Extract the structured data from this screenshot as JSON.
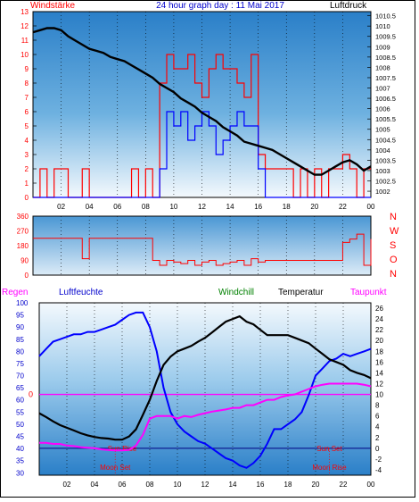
{
  "title": "24 hour graph day : 11 Mai 2017",
  "labels": {
    "windstaerke": "Windstärke",
    "luftdruck": "Luftdruck",
    "regen": "Regen",
    "luftfeuchte": "Luftfeuchte",
    "windchill": "Windchill",
    "temperatur": "Temperatur",
    "taupunkt": "Taupunkt",
    "sun_rise": "Sun Rise",
    "sun_set": "Sun Set",
    "moon_set": "Moon Set",
    "moon_rise": "Moon Rise",
    "zero_marker": "0"
  },
  "colors": {
    "wind": "#ff0000",
    "gust": "#0000ff",
    "pressure": "#000000",
    "humidity": "#0000ff",
    "temperature": "#000000",
    "dewpoint": "#ff00ff",
    "windchill": "#008000",
    "direction": "#ff0000",
    "grid": "#000000",
    "day_sky": "#3d8fd0",
    "night_sky": "#e8f2fa"
  },
  "chart_data": [
    {
      "type": "line",
      "name": "wind-pressure",
      "x_ticks": [
        "02",
        "04",
        "06",
        "08",
        "10",
        "12",
        "14",
        "16",
        "18",
        "20",
        "22",
        "00"
      ],
      "xlim": [
        0,
        24
      ],
      "left_axis": {
        "label": "Windstärke",
        "ticks": [
          0,
          1,
          2,
          3,
          4,
          5,
          6,
          7,
          8,
          9,
          10,
          11,
          12,
          13
        ],
        "ylim": [
          0,
          13
        ]
      },
      "right_axis": {
        "label": "Luftdruck",
        "ticks": [
          "1002",
          "1002.5",
          "1003",
          "1003.5",
          "1004",
          "1004.5",
          "1005",
          "1005.5",
          "1006",
          "1006.5",
          "1007",
          "1007.5",
          "1008",
          "1008.5",
          "1009",
          "1009.5",
          "1010",
          "1010.5"
        ],
        "ylim": [
          1001.7,
          1010.7
        ]
      },
      "series": [
        {
          "name": "Luftdruck",
          "axis": "right",
          "x": [
            0,
            0.5,
            1,
            1.5,
            2,
            2.5,
            3,
            3.5,
            4,
            4.5,
            5,
            5.5,
            6,
            6.5,
            7,
            7.5,
            8,
            8.5,
            9,
            9.5,
            10,
            10.5,
            11,
            11.5,
            12,
            12.5,
            13,
            13.5,
            14,
            14.5,
            15,
            15.5,
            16,
            16.5,
            17,
            17.5,
            18,
            18.5,
            19,
            19.5,
            20,
            20.5,
            21,
            21.5,
            22,
            22.5,
            23,
            23.5,
            24
          ],
          "values": [
            1009.7,
            1009.8,
            1009.9,
            1009.9,
            1009.8,
            1009.5,
            1009.3,
            1009.1,
            1008.9,
            1008.8,
            1008.7,
            1008.5,
            1008.4,
            1008.3,
            1008.1,
            1007.9,
            1007.7,
            1007.5,
            1007.2,
            1007.0,
            1006.8,
            1006.5,
            1006.3,
            1006.1,
            1005.8,
            1005.6,
            1005.4,
            1005.1,
            1004.9,
            1004.7,
            1004.4,
            1004.3,
            1004.2,
            1004.1,
            1004.0,
            1003.8,
            1003.6,
            1003.4,
            1003.2,
            1003.0,
            1002.8,
            1002.8,
            1003.0,
            1003.2,
            1003.4,
            1003.5,
            1003.3,
            1003.0,
            1003.2
          ]
        },
        {
          "name": "Windstärke",
          "axis": "left",
          "x": [
            0,
            0.5,
            1,
            1.5,
            2,
            2.5,
            3,
            3.5,
            4,
            4.5,
            5,
            5.5,
            6,
            6.5,
            7,
            7.5,
            8,
            8.5,
            9,
            9.5,
            10,
            10.5,
            11,
            11.5,
            12,
            12.5,
            13,
            13.5,
            14,
            14.5,
            15,
            15.5,
            16,
            16.5,
            17,
            17.5,
            18,
            18.5,
            19,
            19.5,
            20,
            20.5,
            21,
            21.5,
            22,
            22.5,
            23,
            23.5,
            24
          ],
          "values": [
            0,
            2,
            0,
            2,
            2,
            0,
            0,
            2,
            0,
            0,
            0,
            0,
            0,
            0,
            2,
            0,
            2,
            0,
            8,
            10,
            9,
            9,
            10,
            8,
            7,
            9,
            10,
            9,
            9,
            8,
            7,
            10,
            3,
            2,
            2,
            2,
            2,
            0,
            2,
            0,
            2,
            0,
            2,
            2,
            3,
            2,
            0,
            2,
            2
          ]
        },
        {
          "name": "Böen",
          "axis": "left",
          "x": [
            0,
            0.5,
            1,
            1.5,
            2,
            2.5,
            3,
            3.5,
            4,
            4.5,
            5,
            5.5,
            6,
            6.5,
            7,
            7.5,
            8,
            8.5,
            9,
            9.5,
            10,
            10.5,
            11,
            11.5,
            12,
            12.5,
            13,
            13.5,
            14,
            14.5,
            15,
            15.5,
            16,
            16.5,
            17,
            17.5,
            18,
            18.5,
            19,
            19.5,
            20,
            20.5,
            21,
            21.5,
            22,
            22.5,
            23,
            23.5,
            24
          ],
          "values": [
            0,
            0,
            0,
            0,
            0,
            0,
            0,
            0,
            0,
            0,
            0,
            0,
            0,
            0,
            0,
            0,
            0,
            0,
            2,
            6,
            5,
            6,
            4,
            5,
            6,
            5,
            3,
            4,
            5,
            6,
            5,
            5,
            2,
            0,
            0,
            0,
            0,
            0,
            0,
            0,
            0,
            0,
            0,
            0,
            0,
            0,
            0,
            0,
            0
          ]
        }
      ]
    },
    {
      "type": "scatter",
      "name": "wind-direction",
      "y_ticks": [
        0,
        90,
        180,
        270,
        360
      ],
      "ylim": [
        0,
        360
      ],
      "right_labels": [
        "N",
        "W",
        "S",
        "O",
        "N"
      ],
      "xlim": [
        0,
        24
      ],
      "series": [
        {
          "name": "Windrichtung",
          "x": [
            0,
            1,
            2,
            3,
            3.5,
            4,
            5,
            6,
            6.5,
            7,
            8,
            8.5,
            9,
            9.5,
            10,
            10.5,
            11,
            11.5,
            12,
            12.5,
            13,
            13.5,
            14,
            14.5,
            15,
            15.5,
            16,
            16.5,
            17,
            18,
            19,
            20,
            21,
            22,
            22.5,
            23,
            23.5,
            24
          ],
          "values": [
            225,
            225,
            225,
            225,
            100,
            225,
            225,
            225,
            225,
            225,
            225,
            90,
            60,
            90,
            80,
            70,
            90,
            60,
            80,
            90,
            60,
            70,
            80,
            90,
            60,
            100,
            80,
            90,
            90,
            90,
            90,
            90,
            90,
            200,
            220,
            250,
            60,
            220
          ]
        }
      ]
    },
    {
      "type": "line",
      "name": "temperature-humidity",
      "xlim": [
        0,
        24
      ],
      "left_axis": {
        "label": "Luftfeuchte",
        "ticks": [
          30,
          35,
          40,
          45,
          50,
          55,
          60,
          65,
          70,
          75,
          80,
          85,
          90,
          95,
          100
        ],
        "ylim": [
          29,
          100
        ]
      },
      "right_axis": {
        "label": "Temperatur",
        "ticks": [
          -4,
          -2,
          0,
          2,
          4,
          6,
          8,
          10,
          12,
          14,
          16,
          18,
          20,
          22,
          24,
          26
        ],
        "ylim": [
          -5,
          27
        ]
      },
      "series": [
        {
          "name": "Luftfeuchte",
          "axis": "left",
          "x": [
            0,
            0.5,
            1,
            1.5,
            2,
            2.5,
            3,
            3.5,
            4,
            4.5,
            5,
            5.5,
            6,
            6.5,
            7,
            7.5,
            8,
            8.5,
            9,
            9.5,
            10,
            10.5,
            11,
            11.5,
            12,
            12.5,
            13,
            13.5,
            14,
            14.5,
            15,
            15.5,
            16,
            16.5,
            17,
            17.5,
            18,
            18.5,
            19,
            19.5,
            20,
            20.5,
            21,
            21.5,
            22,
            22.5,
            23,
            23.5,
            24
          ],
          "values": [
            78,
            81,
            84,
            85,
            86,
            87,
            87,
            88,
            88,
            89,
            90,
            91,
            93,
            95,
            96,
            96,
            90,
            80,
            65,
            55,
            50,
            47,
            45,
            43,
            42,
            40,
            38,
            36,
            35,
            33,
            32,
            34,
            37,
            42,
            48,
            48,
            50,
            52,
            55,
            62,
            70,
            73,
            76,
            77,
            79,
            78,
            79,
            80,
            81
          ]
        },
        {
          "name": "Temperatur",
          "axis": "right",
          "x": [
            0,
            0.5,
            1,
            1.5,
            2,
            2.5,
            3,
            3.5,
            4,
            4.5,
            5,
            5.5,
            6,
            6.5,
            7,
            7.5,
            8,
            8.5,
            9,
            9.5,
            10,
            10.5,
            11,
            11.5,
            12,
            12.5,
            13,
            13.5,
            14,
            14.5,
            15,
            15.5,
            16,
            16.5,
            17,
            17.5,
            18,
            18.5,
            19,
            19.5,
            20,
            20.5,
            21,
            21.5,
            22,
            22.5,
            23,
            23.5,
            24
          ],
          "values": [
            6.5,
            5.8,
            5.0,
            4.3,
            3.8,
            3.3,
            2.8,
            2.4,
            2.1,
            1.9,
            1.8,
            1.6,
            1.6,
            2.2,
            3.5,
            6.2,
            9.0,
            12.5,
            15.5,
            17,
            18,
            18.5,
            19,
            19.8,
            20.5,
            21.5,
            22.5,
            23.5,
            24,
            24.5,
            23.5,
            23,
            22,
            21,
            21,
            21,
            21,
            20.5,
            20,
            19.5,
            18.5,
            17.5,
            16.5,
            16,
            15.5,
            14.5,
            14,
            13.6,
            13
          ]
        },
        {
          "name": "Taupunkt",
          "axis": "right",
          "x": [
            0,
            0.5,
            1,
            1.5,
            2,
            2.5,
            3,
            3.5,
            4,
            4.5,
            5,
            5.5,
            6,
            6.5,
            7,
            7.5,
            8,
            8.5,
            9,
            9.5,
            10,
            10.5,
            11,
            11.5,
            12,
            12.5,
            13,
            13.5,
            14,
            14.5,
            15,
            15.5,
            16,
            16.5,
            17,
            17.5,
            18,
            18.5,
            19,
            19.5,
            20,
            20.5,
            21,
            21.5,
            22,
            22.5,
            23,
            23.5,
            24
          ],
          "values": [
            1.0,
            1.0,
            0.8,
            0.8,
            0.5,
            0.4,
            0.2,
            0.1,
            0,
            -0.2,
            -0.3,
            -0.4,
            -0.4,
            -0.3,
            0.5,
            2.5,
            5.5,
            6.0,
            6.0,
            6.0,
            5.5,
            6.0,
            5.8,
            6.2,
            6.5,
            6.8,
            7.0,
            7.2,
            7.5,
            7.5,
            8.0,
            8.0,
            8.5,
            9.0,
            9.0,
            9.5,
            9.8,
            10.0,
            10.5,
            11.0,
            11.5,
            11.8,
            12.0,
            12.0,
            12.0,
            12.0,
            12.0,
            11.8,
            11.5
          ]
        }
      ]
    }
  ]
}
